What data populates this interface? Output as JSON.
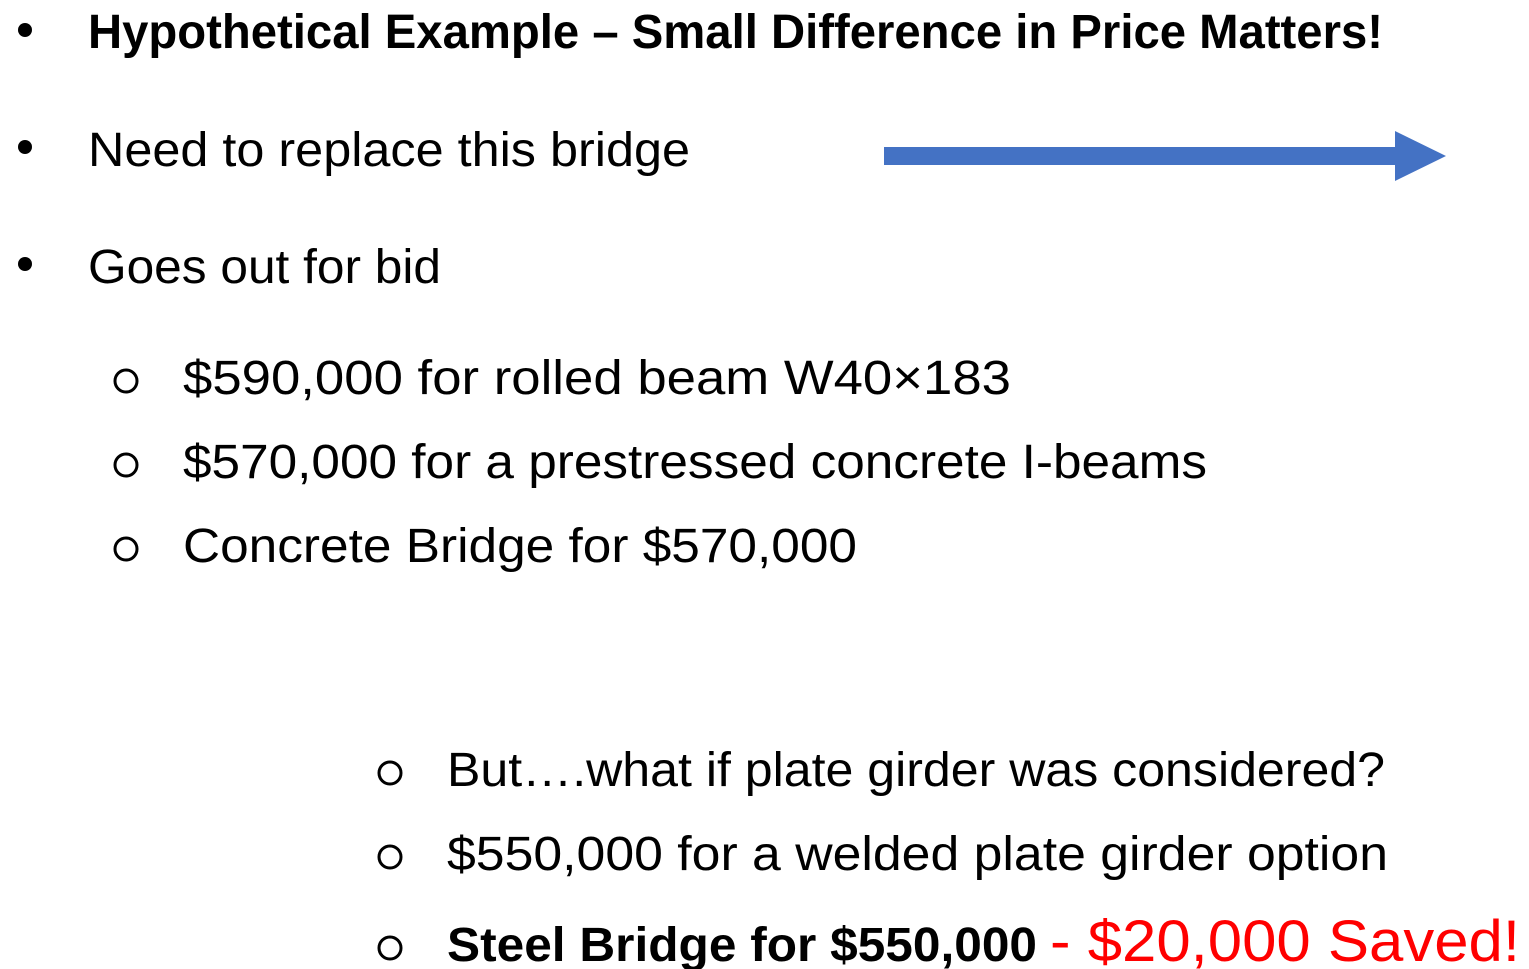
{
  "bullets": [
    "Hypothetical Example – Small Difference in Price Matters!",
    "Need to replace this bridge",
    "Goes out for bid"
  ],
  "bid_options": [
    "$590,000 for rolled beam W40×183",
    "$570,000 for a prestressed concrete I-beams",
    "Concrete Bridge for $570,000"
  ],
  "alternatives": [
    "But….what if plate girder was considered?",
    "$550,000 for a welded plate girder option"
  ],
  "conclusion": {
    "text": "Steel Bridge for $550,000",
    "savings": "- $20,000 Saved!"
  }
}
